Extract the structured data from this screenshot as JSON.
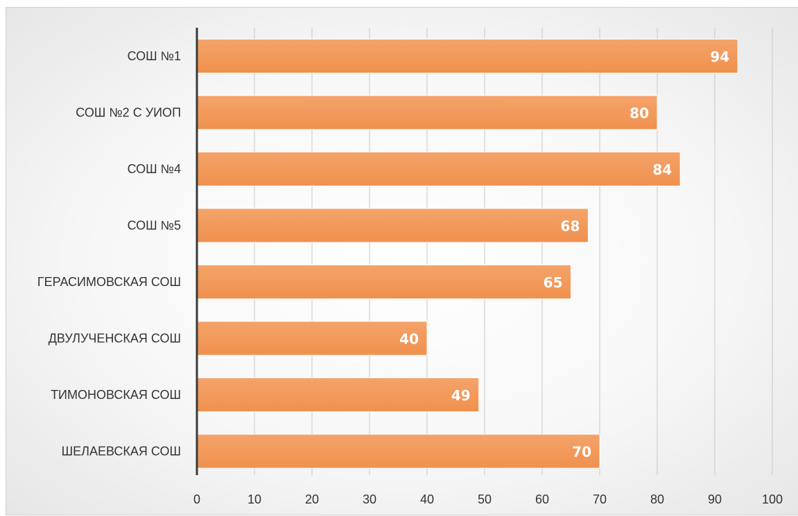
{
  "chart_data": {
    "type": "bar",
    "orientation": "horizontal",
    "categories": [
      "СОШ №1",
      "СОШ №2 С УИОП",
      "СОШ №4",
      "СОШ №5",
      "ГЕРАСИМОВСКАЯ СОШ",
      "ДВУЛУЧЕНСКАЯ СОШ",
      "ТИМОНОВСКАЯ СОШ",
      "ШЕЛАЕВСКАЯ СОШ"
    ],
    "values": [
      94,
      80,
      84,
      68,
      65,
      40,
      49,
      70
    ],
    "value_labels": [
      "94",
      "80",
      "84",
      "68",
      "65",
      "40",
      "49",
      "70"
    ],
    "title": "",
    "xlabel": "",
    "ylabel": "",
    "xlim": [
      0,
      100
    ],
    "xticks": [
      0,
      10,
      20,
      30,
      40,
      50,
      60,
      70,
      80,
      90,
      100
    ],
    "xtick_labels": [
      "0",
      "10",
      "20",
      "30",
      "40",
      "50",
      "60",
      "70",
      "80",
      "90",
      "100"
    ],
    "grid": true,
    "legend": "none",
    "bar_color": "#f0914e",
    "bar_highlight_color": "#f4a36a"
  }
}
